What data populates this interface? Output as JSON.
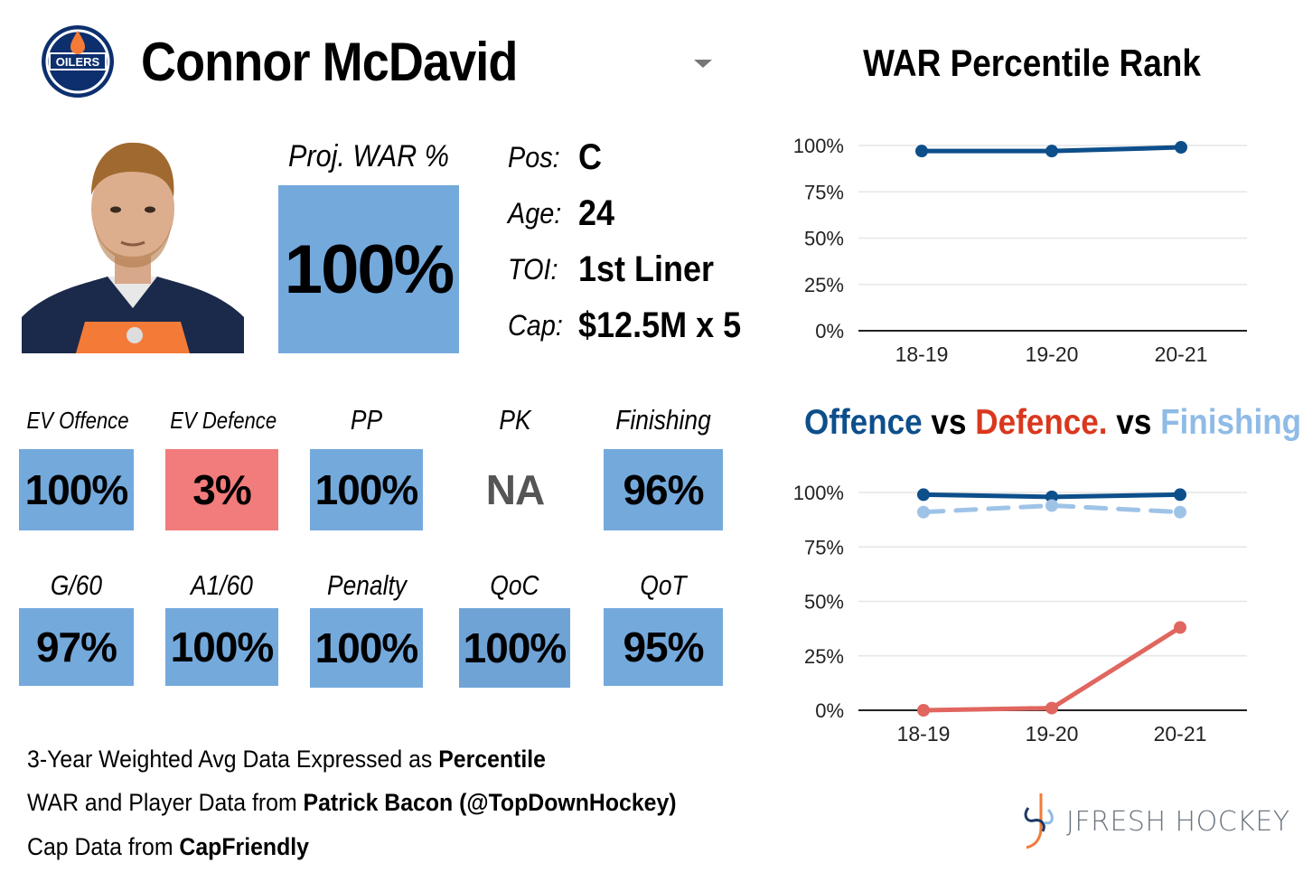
{
  "player": {
    "name": "Connor McDavid",
    "team_logo_text": "OILERS",
    "proj_war_label": "Proj. WAR %",
    "proj_war_value": "100%"
  },
  "info": [
    {
      "label": "Pos:",
      "value": "C"
    },
    {
      "label": "Age:",
      "value": "24"
    },
    {
      "label": "TOI:",
      "value": "1st Liner"
    },
    {
      "label": "Cap:",
      "value": "$12.5M x 5"
    }
  ],
  "stats_row1": [
    {
      "label": "EV Offence",
      "value": "100%",
      "status": "blue"
    },
    {
      "label": "EV Defence",
      "value": "3%",
      "status": "red"
    },
    {
      "label": "PP",
      "value": "100%",
      "status": "blue"
    },
    {
      "label": "PK",
      "value": "NA",
      "status": "na"
    },
    {
      "label": "Finishing",
      "value": "96%",
      "status": "blue"
    }
  ],
  "stats_row2": [
    {
      "label": "G/60",
      "value": "97%",
      "status": "blue"
    },
    {
      "label": "A1/60",
      "value": "100%",
      "status": "blue"
    },
    {
      "label": "Penalty",
      "value": "100%",
      "status": "blue"
    },
    {
      "label": "QoC",
      "value": "100%",
      "status": "blue"
    },
    {
      "label": "QoT",
      "value": "95%",
      "status": "blue"
    }
  ],
  "footer": {
    "line1_prefix": "3-Year Weighted Avg Data Expressed as ",
    "line1_bold": "Percentile",
    "line2_prefix": "WAR and Player Data from ",
    "line2_bold": "Patrick Bacon (@TopDownHockey)",
    "line3_prefix": "Cap Data from ",
    "line3_bold": "CapFriendly"
  },
  "brand": "JFRESH HOCKEY",
  "colors": {
    "good": "#74a9dc",
    "bad": "#f27b7b",
    "offence": "#0d4f8b",
    "defence": "#e0665f",
    "finishing": "#9fc3e7"
  },
  "chart_data": [
    {
      "type": "line",
      "title": "WAR Percentile Rank",
      "categories": [
        "18-19",
        "19-20",
        "20-21"
      ],
      "series": [
        {
          "values": [
            97,
            97,
            99
          ],
          "color": "#0d4f8b",
          "style": "solid"
        }
      ],
      "ylim": [
        0,
        100
      ],
      "yticks": [
        "0%",
        "25%",
        "50%",
        "75%",
        "100%"
      ],
      "grid": true
    },
    {
      "type": "line",
      "title_parts": [
        "Offence",
        " vs ",
        "Defence.",
        " vs ",
        "Finishing"
      ],
      "categories": [
        "18-19",
        "19-20",
        "20-21"
      ],
      "series": [
        {
          "values": [
            99,
            98,
            99
          ],
          "color": "#0d4f8b",
          "style": "solid"
        },
        {
          "values": [
            91,
            94,
            91
          ],
          "color": "#9fc3e7",
          "style": "dashed"
        },
        {
          "values": [
            0,
            1,
            38
          ],
          "color": "#e0665f",
          "style": "solid"
        }
      ],
      "ylim": [
        0,
        100
      ],
      "yticks": [
        "0%",
        "25%",
        "50%",
        "75%",
        "100%"
      ],
      "grid": true
    }
  ]
}
